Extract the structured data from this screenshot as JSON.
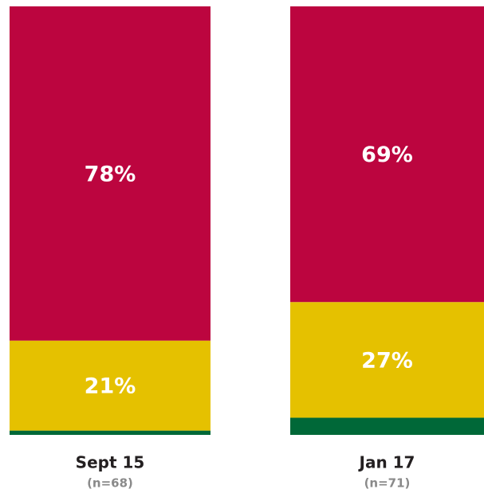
{
  "chart_data": {
    "type": "stacked_bar",
    "categories": [
      "Sept 15",
      "Jan 17"
    ],
    "sample_sizes": [
      "(n=68)",
      "(n=71)"
    ],
    "ylim": [
      0,
      100
    ],
    "series": [
      {
        "color": "#006838",
        "values": [
          1,
          4
        ]
      },
      {
        "color": "#e5c100",
        "values": [
          21,
          27
        ],
        "value_labels": [
          "21%",
          "27%"
        ]
      },
      {
        "color": "#bc053f",
        "values": [
          78,
          69
        ],
        "value_labels": [
          "78%",
          "69%"
        ]
      }
    ]
  }
}
